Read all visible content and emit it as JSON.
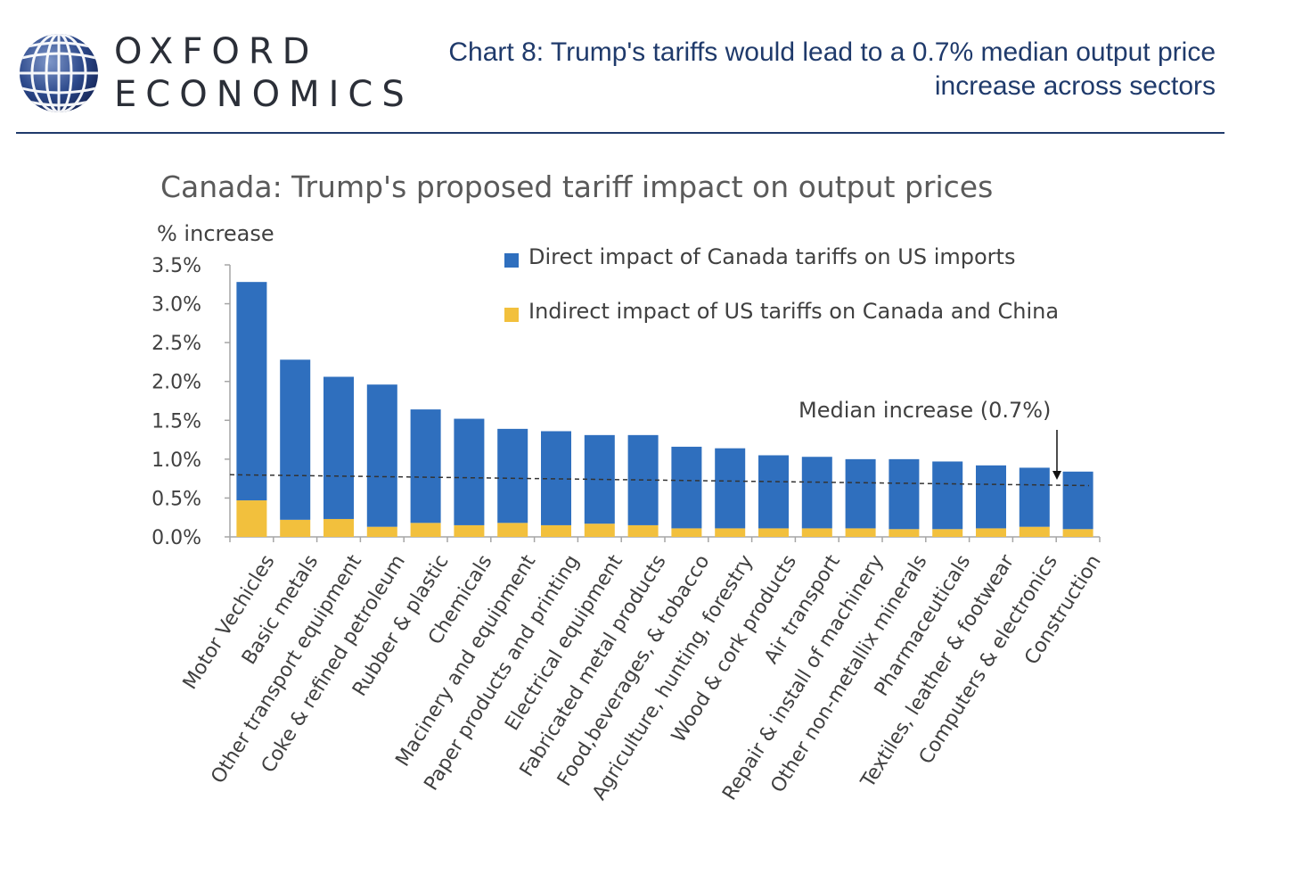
{
  "header": {
    "logo_line1": "OXFORD",
    "logo_line2": "ECONOMICS",
    "title": "Chart 8: Trump's tariffs would lead to a 0.7% median output price increase across sectors"
  },
  "colors": {
    "direct": "#2f6fbe",
    "indirect": "#f2c03d",
    "header_text": "#1f3a6b",
    "rule": "#1f3a6b"
  },
  "chart_data": {
    "type": "bar",
    "stacked": true,
    "title": "Canada: Trump's proposed tariff impact on output prices",
    "ylabel": "% increase",
    "ylim": [
      0,
      3.5
    ],
    "yticks": [
      "0.0%",
      "0.5%",
      "1.0%",
      "1.5%",
      "2.0%",
      "2.5%",
      "3.0%",
      "3.5%"
    ],
    "ytick_values": [
      0,
      0.5,
      1.0,
      1.5,
      2.0,
      2.5,
      3.0,
      3.5
    ],
    "grid": false,
    "legend_position": "top-right",
    "categories": [
      "Motor Vechicles",
      "Basic metals",
      "Other transport equipment",
      "Coke & refined petroleum",
      "Rubber & plastic",
      "Chemicals",
      "Macinery and equipment",
      "Paper products and printing",
      "Electrical equipment",
      "Fabricated metal products",
      "Food,beverages, & tobacco",
      "Agriculture, hunting, forestry",
      "Wood & cork products",
      "Air transport",
      "Repair & install of machinery",
      "Other non-metallix minerals",
      "Pharmaceuticals",
      "Textiles, leather & footwear",
      "Computers & electronics",
      "Construction"
    ],
    "series": [
      {
        "name": "Indirect impact of US tariffs on Canada and China",
        "color": "#f2c03d",
        "values": [
          0.47,
          0.22,
          0.23,
          0.13,
          0.18,
          0.15,
          0.18,
          0.15,
          0.17,
          0.15,
          0.11,
          0.11,
          0.11,
          0.11,
          0.11,
          0.1,
          0.1,
          0.11,
          0.13,
          0.1
        ]
      },
      {
        "name": "Direct impact of Canada tariffs on US imports",
        "color": "#2f6fbe",
        "values": [
          2.81,
          2.06,
          1.83,
          1.83,
          1.46,
          1.37,
          1.21,
          1.21,
          1.14,
          1.16,
          1.05,
          1.03,
          0.94,
          0.92,
          0.89,
          0.9,
          0.87,
          0.81,
          0.76,
          0.74
        ]
      }
    ],
    "median_line": {
      "label": "Median increase  (0.7%)",
      "start": 0.8,
      "end": 0.66
    }
  }
}
